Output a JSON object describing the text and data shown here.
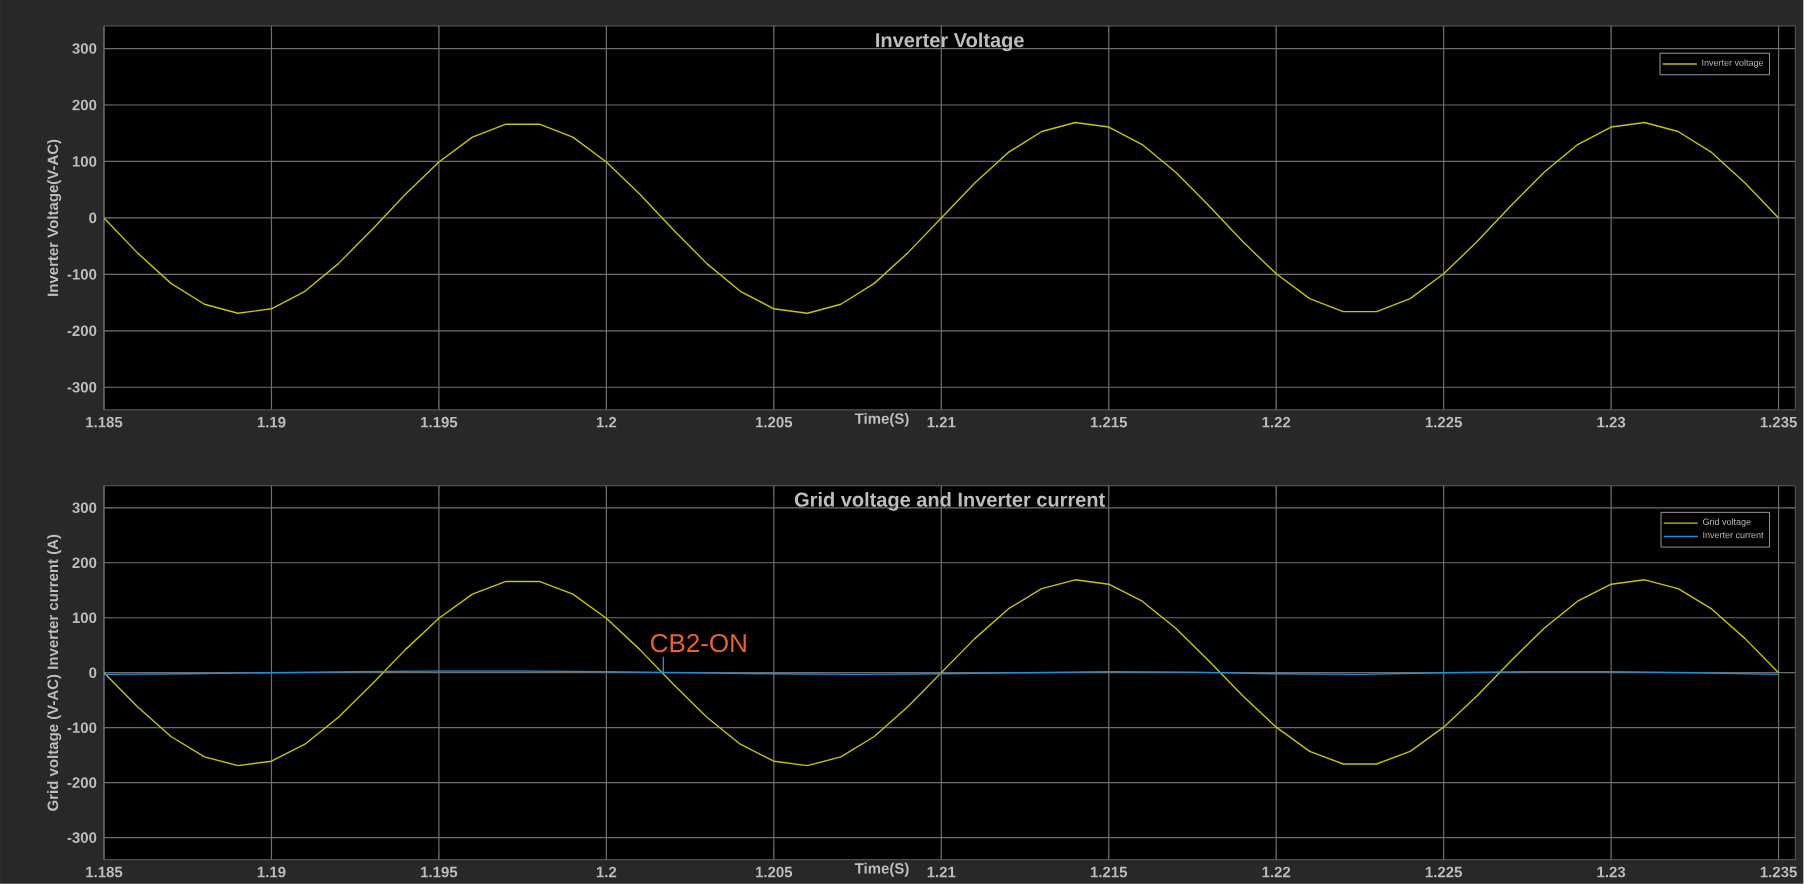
{
  "chart_data": [
    {
      "type": "line",
      "title": "Inverter Voltage",
      "xlabel": "Time(S)",
      "ylabel": "Inverter Voltage(V-AC)",
      "legend": "top right",
      "grid": true,
      "xlim": [
        1.185,
        1.2355
      ],
      "ylim": [
        -340,
        340
      ],
      "xticks": [
        1.185,
        1.19,
        1.195,
        1.2,
        1.205,
        1.21,
        1.215,
        1.22,
        1.225,
        1.23,
        1.235
      ],
      "yticks": [
        -300,
        -200,
        -100,
        0,
        100,
        200,
        300
      ],
      "x": [
        1.185,
        1.186,
        1.187,
        1.188,
        1.189,
        1.19,
        1.191,
        1.192,
        1.193,
        1.194,
        1.195,
        1.196,
        1.197,
        1.198,
        1.199,
        1.2,
        1.201,
        1.202,
        1.203,
        1.204,
        1.205,
        1.206,
        1.207,
        1.208,
        1.209,
        1.21,
        1.211,
        1.212,
        1.213,
        1.214,
        1.215,
        1.216,
        1.217,
        1.218,
        1.219,
        1.22,
        1.221,
        1.222,
        1.223,
        1.224,
        1.225,
        1.226,
        1.227,
        1.228,
        1.229,
        1.23,
        1.231,
        1.232,
        1.233,
        1.234,
        1.235
      ],
      "series": [
        {
          "name": "Inverter voltage",
          "color": "#c8c400",
          "values": [
            0,
            -62,
            -116,
            -153,
            -169,
            -161,
            -130,
            -81,
            -21,
            42,
            99,
            143,
            166,
            166,
            143,
            99,
            42,
            -21,
            -81,
            -130,
            -161,
            -169,
            -153,
            -116,
            -62,
            0,
            62,
            116,
            153,
            169,
            161,
            130,
            81,
            21,
            -42,
            -99,
            -143,
            -166,
            -166,
            -143,
            -99,
            -42,
            21,
            81,
            130,
            161,
            169,
            153,
            116,
            62,
            0
          ]
        }
      ]
    },
    {
      "type": "line",
      "title": "Grid voltage and Inverter current",
      "xlabel": "Time(S)",
      "ylabel": "Grid voltage (V-AC) Inverter current (A)",
      "legend": "top right",
      "grid": true,
      "xlim": [
        1.185,
        1.2355
      ],
      "ylim": [
        -340,
        340
      ],
      "xticks": [
        1.185,
        1.19,
        1.195,
        1.2,
        1.205,
        1.21,
        1.215,
        1.22,
        1.225,
        1.23,
        1.235
      ],
      "yticks": [
        -300,
        -200,
        -100,
        0,
        100,
        200,
        300
      ],
      "x": [
        1.185,
        1.186,
        1.187,
        1.188,
        1.189,
        1.19,
        1.191,
        1.192,
        1.193,
        1.194,
        1.195,
        1.196,
        1.197,
        1.198,
        1.199,
        1.2,
        1.201,
        1.202,
        1.203,
        1.204,
        1.205,
        1.206,
        1.207,
        1.208,
        1.209,
        1.21,
        1.211,
        1.212,
        1.213,
        1.214,
        1.215,
        1.216,
        1.217,
        1.218,
        1.219,
        1.22,
        1.221,
        1.222,
        1.223,
        1.224,
        1.225,
        1.226,
        1.227,
        1.228,
        1.229,
        1.23,
        1.231,
        1.232,
        1.233,
        1.234,
        1.235
      ],
      "series": [
        {
          "name": "Grid voltage",
          "color": "#c8c400",
          "values": [
            0,
            -62,
            -116,
            -153,
            -169,
            -161,
            -130,
            -81,
            -21,
            42,
            99,
            143,
            166,
            166,
            143,
            99,
            42,
            -21,
            -81,
            -130,
            -161,
            -169,
            -153,
            -116,
            -62,
            0,
            62,
            116,
            153,
            169,
            161,
            130,
            81,
            21,
            -42,
            -99,
            -143,
            -166,
            -166,
            -143,
            -99,
            -42,
            21,
            81,
            130,
            161,
            169,
            153,
            116,
            62,
            0
          ]
        },
        {
          "name": "Inverter current",
          "color": "#1e8fd6",
          "x": [
            1.185,
            1.1875,
            1.19,
            1.1925,
            1.195,
            1.1975,
            1.2,
            1.2025,
            1.205,
            1.2075,
            1.21,
            1.2125,
            1.215,
            1.2175,
            1.22,
            1.2225,
            1.225,
            1.2275,
            1.23,
            1.2325,
            1.235
          ],
          "values": [
            -3,
            -2,
            0,
            2,
            3,
            3,
            2,
            0,
            -2,
            -3,
            -2,
            0,
            2,
            1,
            -2,
            -3,
            0,
            2,
            2,
            0,
            -3
          ]
        }
      ],
      "annotations": [
        {
          "text": "CB2-ON",
          "x": 1.2017,
          "y": 0
        }
      ]
    }
  ]
}
